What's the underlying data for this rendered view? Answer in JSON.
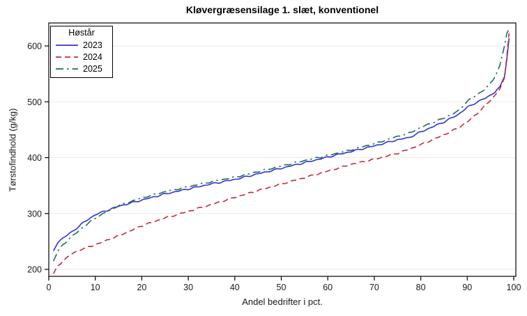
{
  "title": "Kløvergræsensilage 1. slæt, konventionel",
  "chart_data": {
    "type": "line",
    "title": "Kløvergræsensilage 1. slæt, konventionel",
    "xlabel": "Andel bedrifter i pct.",
    "ylabel": "Tørstofindhold (g/kg)",
    "xlim": [
      0,
      100
    ],
    "ylim": [
      184,
      641
    ],
    "xticks": [
      0,
      10,
      20,
      30,
      40,
      50,
      60,
      70,
      80,
      90,
      100
    ],
    "yticks": [
      200,
      300,
      400,
      500,
      600
    ],
    "grid": "horizontal",
    "gridline_color": "#e9e9e9",
    "frame_color": "#000000",
    "legend": {
      "title": "Høstår",
      "position": "top-left-inside"
    },
    "x_pct": [
      1,
      2,
      3,
      5,
      7,
      10,
      15,
      20,
      25,
      30,
      35,
      40,
      45,
      50,
      55,
      60,
      65,
      70,
      75,
      77.5,
      80,
      85,
      88,
      90,
      92,
      94,
      95,
      96,
      97,
      98,
      98.5,
      99
    ],
    "series": [
      {
        "name": "2023",
        "color": "#3333CC",
        "dash": "solid",
        "values": [
          233,
          249,
          256,
          267,
          281,
          298,
          313,
          324,
          335,
          344,
          353,
          361,
          371,
          381,
          391,
          401,
          411,
          421,
          432,
          436,
          446,
          464,
          477,
          490,
          499,
          507,
          512,
          518,
          527,
          545,
          575,
          614
        ]
      },
      {
        "name": "2024",
        "color": "#C2293E",
        "dash": "dash",
        "values": [
          192,
          206,
          215,
          228,
          236,
          244,
          260,
          278,
          292,
          304,
          316,
          329,
          341,
          353,
          364,
          376,
          388,
          397,
          408,
          415,
          423,
          441,
          453,
          464,
          478,
          494,
          503,
          512,
          523,
          543,
          580,
          623
        ]
      },
      {
        "name": "2025",
        "color": "#1E6C60",
        "dash": "dash-dot",
        "values": [
          215,
          233,
          244,
          259,
          273,
          292,
          314,
          328,
          339,
          348,
          357,
          365,
          375,
          385,
          395,
          404,
          414,
          425,
          438,
          444,
          454,
          471,
          483,
          501,
          512,
          524,
          533,
          545,
          565,
          600,
          622,
          631
        ]
      }
    ]
  }
}
